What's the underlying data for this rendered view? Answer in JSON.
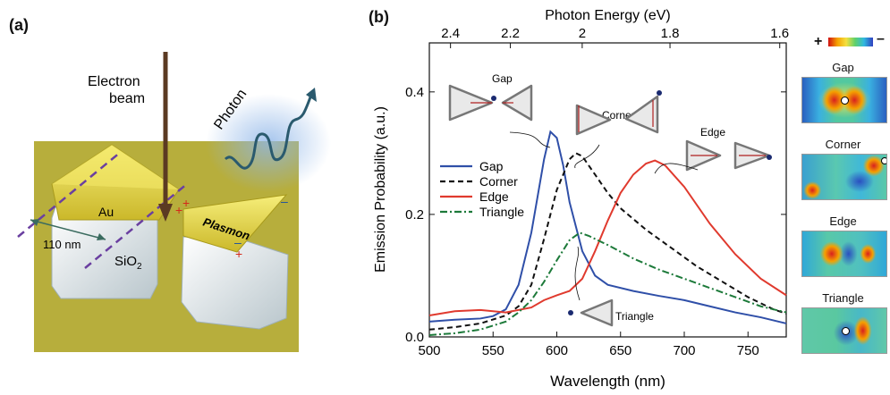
{
  "panel_a": {
    "label": "(a)",
    "electron_beam": [
      "Electron",
      "beam"
    ],
    "photon": "Photon",
    "au": "Au",
    "sio2": "SiO",
    "sio2_sub": "2",
    "plasmon": "Plasmon",
    "dimension": "110 nm",
    "plus": "+",
    "minus": "–",
    "colors": {
      "background": "#b7ae3c",
      "gold": "#e3d43c",
      "substrate": "#e6eef2",
      "dash": "#6a3fa0",
      "arrow": "#5b3a22",
      "photon_wave": "#2a5a6e"
    }
  },
  "panel_b": {
    "label": "(b)",
    "insets": {
      "gap": "Gap",
      "corner": "Corner",
      "edge": "Edge",
      "triangle": "Triangle"
    }
  },
  "maps": {
    "scale_plus": "+",
    "scale_minus": "–",
    "titles": [
      "Gap",
      "Corner",
      "Edge",
      "Triangle"
    ]
  },
  "chart_data": {
    "type": "line",
    "xlabel": "Wavelength (nm)",
    "ylabel": "Emission Probability (a.u.)",
    "top_xlabel": "Photon Energy (eV)",
    "xlim": [
      500,
      780
    ],
    "ylim": [
      0,
      0.48
    ],
    "x_ticks": [
      500,
      550,
      600,
      650,
      700,
      750
    ],
    "y_ticks": [
      0.0,
      0.2,
      0.4
    ],
    "y_tick_labels": [
      "0.0",
      "0.2",
      "0.4"
    ],
    "top_ticks": [
      "2.4",
      "2.2",
      "2",
      "1.8",
      "1.6"
    ],
    "legend_position": "left",
    "series": [
      {
        "name": "Gap",
        "color": "#2f4fa8",
        "dash": "solid",
        "x": [
          500,
          520,
          540,
          550,
          560,
          570,
          580,
          590,
          595,
          600,
          605,
          610,
          620,
          630,
          640,
          660,
          680,
          700,
          720,
          740,
          760,
          780
        ],
        "y": [
          0.025,
          0.028,
          0.03,
          0.034,
          0.045,
          0.085,
          0.17,
          0.29,
          0.335,
          0.325,
          0.28,
          0.22,
          0.14,
          0.1,
          0.085,
          0.075,
          0.067,
          0.06,
          0.05,
          0.04,
          0.032,
          0.022
        ]
      },
      {
        "name": "Corner",
        "color": "#111111",
        "dash": "dashed",
        "x": [
          500,
          520,
          540,
          560,
          570,
          580,
          590,
          600,
          610,
          615,
          620,
          630,
          640,
          650,
          670,
          690,
          710,
          730,
          750,
          770,
          780
        ],
        "y": [
          0.012,
          0.016,
          0.022,
          0.035,
          0.05,
          0.085,
          0.16,
          0.24,
          0.29,
          0.3,
          0.295,
          0.265,
          0.235,
          0.21,
          0.175,
          0.145,
          0.115,
          0.09,
          0.065,
          0.045,
          0.038
        ]
      },
      {
        "name": "Edge",
        "color": "#e03a2e",
        "dash": "solid",
        "x": [
          500,
          520,
          540,
          560,
          580,
          590,
          600,
          610,
          620,
          630,
          640,
          650,
          660,
          670,
          677,
          685,
          700,
          720,
          740,
          760,
          780
        ],
        "y": [
          0.035,
          0.042,
          0.044,
          0.04,
          0.048,
          0.06,
          0.068,
          0.075,
          0.095,
          0.14,
          0.19,
          0.235,
          0.265,
          0.283,
          0.288,
          0.28,
          0.245,
          0.185,
          0.135,
          0.095,
          0.068
        ]
      },
      {
        "name": "Triangle",
        "color": "#1d7a3a",
        "dash": "dashdot",
        "x": [
          500,
          520,
          540,
          560,
          570,
          580,
          590,
          600,
          610,
          618,
          625,
          640,
          660,
          680,
          700,
          720,
          740,
          760,
          780
        ],
        "y": [
          0.003,
          0.006,
          0.012,
          0.025,
          0.04,
          0.06,
          0.09,
          0.125,
          0.158,
          0.17,
          0.165,
          0.15,
          0.128,
          0.11,
          0.095,
          0.08,
          0.065,
          0.05,
          0.04
        ]
      }
    ]
  }
}
